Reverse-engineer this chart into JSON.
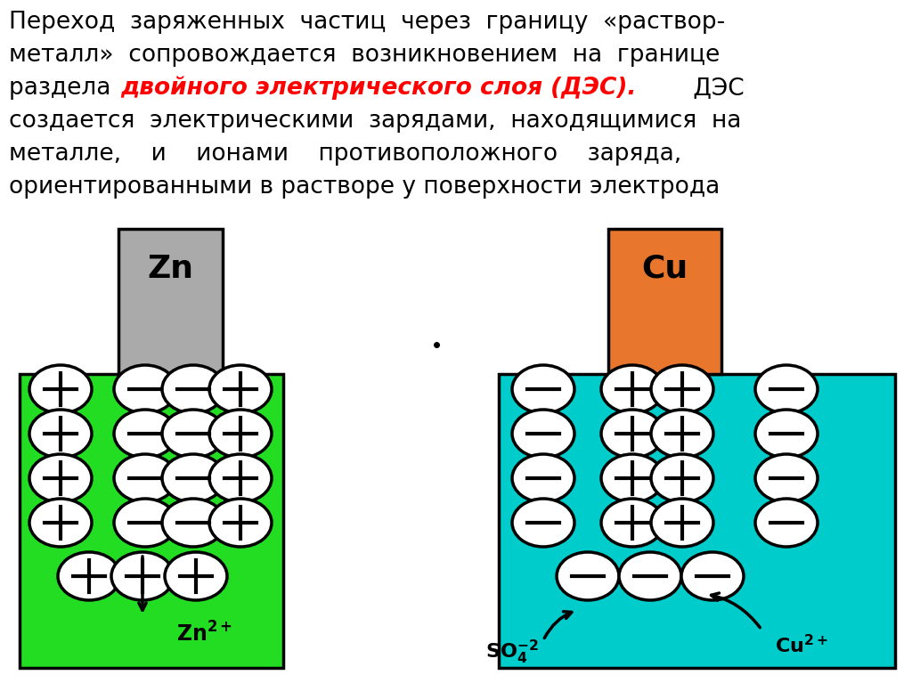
{
  "bg_color": "#ffffff",
  "zn_metal_color": "#aaaaaa",
  "cu_metal_color": "#e8762c",
  "zn_solution_color": "#22dd22",
  "cu_solution_color": "#00cccc",
  "ion_face_color": "#ffffff",
  "ion_edge_color": "#000000",
  "text_lines": [
    "Переход заряженных частиц через границу «раствор-",
    "металл» сопровождается возникновением на границе",
    "раздела",
    "ДЭС создается электрическими зарядами, находящимися на",
    "металле,   и   ионами   противоположного   заряда,",
    "ориентированными в растворе у поверхности электрода"
  ],
  "red_text": "двойного электрического слоя (ДЭС).",
  "des_suffix": " ДЭС"
}
